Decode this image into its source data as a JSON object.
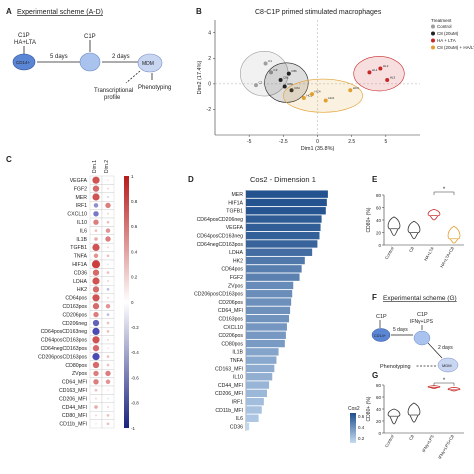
{
  "panels": {
    "A": {
      "letter": "A",
      "title": "Experimental scheme (A-D)",
      "c1p_1": "C1P",
      "c1p_2": "HA+LTA",
      "c1p_3": "C1P",
      "cd14": "CD14+",
      "days5": "5 days",
      "days2": "2 days",
      "mdm": "MDM",
      "transcriptional": "Transcriptional",
      "profile": "profile",
      "phenotyping": "Phenotyping"
    },
    "B": {
      "letter": "B",
      "title": "C8-C1P primed stimulated macrophages",
      "legend_title": "Treatment",
      "legend": [
        {
          "label": "Control",
          "color": "#9e9e9e"
        },
        {
          "label": "C8 (20uM)",
          "color": "#222222"
        },
        {
          "label": "HA + LTA",
          "color": "#c62828"
        },
        {
          "label": "C8 (20uM) + HA/LTA",
          "color": "#e0a030"
        }
      ]
    },
    "C": {
      "letter": "C",
      "col1": "Dim.1",
      "col2": "Dim.2"
    },
    "D": {
      "letter": "D",
      "title": "Cos2 - Dimension 1",
      "legend_title": "Cos2",
      "legend_ticks": [
        "0.6",
        "0.4",
        "0.2"
      ]
    },
    "E": {
      "letter": "E",
      "ylabel": "CD80+ (%)",
      "yticks": [
        "0",
        "20",
        "40",
        "60",
        "80"
      ],
      "xcats": [
        "Control",
        "C8",
        "HA+LTA",
        "HA+LTA+C8"
      ],
      "sig": "*"
    },
    "F": {
      "letter": "F",
      "title": "Experimental scheme (G)",
      "c1p_1": "C1P",
      "c1p_2": "C1P",
      "ifn": "IFNγ+LPS",
      "days5": "5 days",
      "days2": "2 days",
      "cd14": "CD14+",
      "mdm": "MDM",
      "phenotyping": "Phenotyping"
    },
    "G": {
      "letter": "G",
      "ylabel": "CD80+ (%)",
      "yticks": [
        "0",
        "20",
        "40",
        "60",
        "80"
      ],
      "xcats": [
        "Control",
        "C8",
        "IFNγ+LPS",
        "IFNγ+LPS+C8"
      ],
      "sig": "*"
    }
  },
  "chart_data": [
    {
      "type": "scatter",
      "title": "C8-C1P primed stimulated macrophages",
      "xlabel": "Dim1 (35.8%)",
      "ylabel": "Dim2 (17.4%)",
      "xlim": [
        -7.5,
        7.5
      ],
      "ylim": [
        -4,
        5
      ],
      "xticks": [
        -5,
        -2.5,
        0,
        2.5,
        5
      ],
      "yticks": [
        -2,
        0,
        2,
        4
      ],
      "series": [
        {
          "name": "Control",
          "color": "#9e9e9e",
          "points": [
            [
              -3.8,
              1.6
            ],
            [
              -4.5,
              -0.1
            ],
            [
              -3.4,
              0.9
            ]
          ],
          "labels": [
            "C1",
            "C2",
            "C3"
          ]
        },
        {
          "name": "C8 (20uM)",
          "color": "#222222",
          "points": [
            [
              -2.4,
              -0.2
            ],
            [
              -2.1,
              0.8
            ],
            [
              -2.7,
              0.3
            ],
            [
              -1.9,
              -0.5
            ]
          ],
          "labels": [
            "C8a",
            "C8b",
            "C8c",
            "C8d"
          ]
        },
        {
          "name": "HA + LTA",
          "color": "#c62828",
          "points": [
            [
              3.8,
              0.9
            ],
            [
              4.6,
              1.2
            ],
            [
              5.1,
              0.3
            ]
          ],
          "labels": [
            "HL1",
            "HL2",
            "HL3"
          ]
        },
        {
          "name": "C8 (20uM) + HA/LTA",
          "color": "#e0a030",
          "points": [
            [
              -1.0,
              -1.1
            ],
            [
              0.6,
              -1.3
            ],
            [
              2.4,
              -0.5
            ],
            [
              -0.4,
              -0.8
            ]
          ],
          "labels": [
            "HC1",
            "HC2",
            "HC3",
            "HC4"
          ]
        }
      ]
    },
    {
      "type": "heatmap",
      "columns": [
        "Dim.1",
        "Dim.2"
      ],
      "rows": [
        "VEGFA",
        "FGF2",
        "MER",
        "IRF1",
        "CXCL10",
        "IL10",
        "IL6",
        "IL1B",
        "TGFB1",
        "TNFA",
        "HIF1A",
        "CD36",
        "LDHA",
        "HK2",
        "CD64pos",
        "CD163pos",
        "CD206pos",
        "CD206neg",
        "CD64posCD163neg",
        "CD64posCD163pos",
        "CD64negCD163pos",
        "CD206posCD163pos",
        "CD80pos",
        "ZVpos",
        "CD64_MFI",
        "CD163_MFI",
        "CD206_MFI",
        "CD44_MFI",
        "CD80_MFI",
        "CD11b_MFI"
      ],
      "values": [
        [
          0.8,
          0.1
        ],
        [
          0.7,
          0.2
        ],
        [
          0.8,
          -0.2
        ],
        [
          -0.5,
          0.6
        ],
        [
          -0.6,
          0.2
        ],
        [
          0.6,
          0.3
        ],
        [
          0.3,
          0.5
        ],
        [
          0.4,
          0.6
        ],
        [
          0.8,
          0.2
        ],
        [
          0.5,
          0.3
        ],
        [
          0.9,
          -0.1
        ],
        [
          0.7,
          0.3
        ],
        [
          0.8,
          0.2
        ],
        [
          0.7,
          -0.3
        ],
        [
          0.8,
          0.2
        ],
        [
          0.7,
          0.5
        ],
        [
          0.6,
          -0.3
        ],
        [
          -0.7,
          0.3
        ],
        [
          -0.8,
          0.3
        ],
        [
          0.8,
          0.2
        ],
        [
          0.7,
          -0.1
        ],
        [
          -0.8,
          0.3
        ],
        [
          0.7,
          0.3
        ],
        [
          0.6,
          0.6
        ],
        [
          0.6,
          0.5
        ],
        [
          0.3,
          0.1
        ],
        [
          0.2,
          -0.1
        ],
        [
          0.4,
          0.2
        ],
        [
          0.2,
          0.3
        ],
        [
          0.1,
          0.3
        ]
      ],
      "colorbar": [
        "1",
        "0.8",
        "0.6",
        "0.4",
        "0.2",
        "0",
        "-0.2",
        "-0.4",
        "-0.6",
        "-0.8",
        "-1"
      ]
    },
    {
      "type": "bar",
      "orientation": "horizontal",
      "title": "Cos2 - Dimension 1",
      "categories": [
        "MER",
        "HIF1A",
        "TGFB1",
        "CD64posCD206neg",
        "VEGFA",
        "CD64posCD163neg",
        "CD64negCD163pos",
        "LDHA",
        "HK2",
        "CD64pos",
        "FGF2",
        "ZVpos",
        "CD206posCD163pos",
        "CD206pos",
        "CD64_MFI",
        "CD163pos",
        "CXCL10",
        "CD206pos",
        "CD80pos",
        "IL1B",
        "TNFA",
        "CD163_MFI",
        "IL10",
        "CD44_MFI",
        "CD206_MFI",
        "IRF1",
        "CD11b_MFI",
        "IL6",
        "CD36"
      ],
      "values": [
        0.78,
        0.77,
        0.76,
        0.72,
        0.71,
        0.7,
        0.68,
        0.63,
        0.56,
        0.53,
        0.51,
        0.45,
        0.44,
        0.43,
        0.42,
        0.41,
        0.39,
        0.38,
        0.37,
        0.31,
        0.29,
        0.27,
        0.25,
        0.22,
        0.2,
        0.17,
        0.15,
        0.12,
        0.03
      ],
      "xlim": [
        0,
        0.8
      ]
    },
    {
      "type": "violin",
      "ylabel": "CD80+ (%)",
      "ylim": [
        0,
        80
      ],
      "categories": [
        "Control",
        "C8",
        "HA+LTA",
        "HA+LTA+C8"
      ],
      "medians": [
        26,
        20,
        47,
        10
      ],
      "ranges": [
        [
          15,
          45
        ],
        [
          10,
          38
        ],
        [
          40,
          57
        ],
        [
          3,
          30
        ]
      ],
      "colors": [
        "#333333",
        "#333333",
        "#c62828",
        "#e0a030"
      ]
    },
    {
      "type": "violin",
      "ylabel": "CD80+ (%)",
      "ylim": [
        0,
        80
      ],
      "categories": [
        "Control",
        "C8",
        "IFNγ+LPS",
        "IFNγ+LPS+C8"
      ],
      "medians": [
        28,
        30,
        76,
        72
      ],
      "ranges": [
        [
          15,
          40
        ],
        [
          18,
          50
        ],
        [
          74,
          79
        ],
        [
          70,
          76
        ]
      ],
      "colors": [
        "#333333",
        "#333333",
        "#c62828",
        "#c62828"
      ]
    }
  ]
}
